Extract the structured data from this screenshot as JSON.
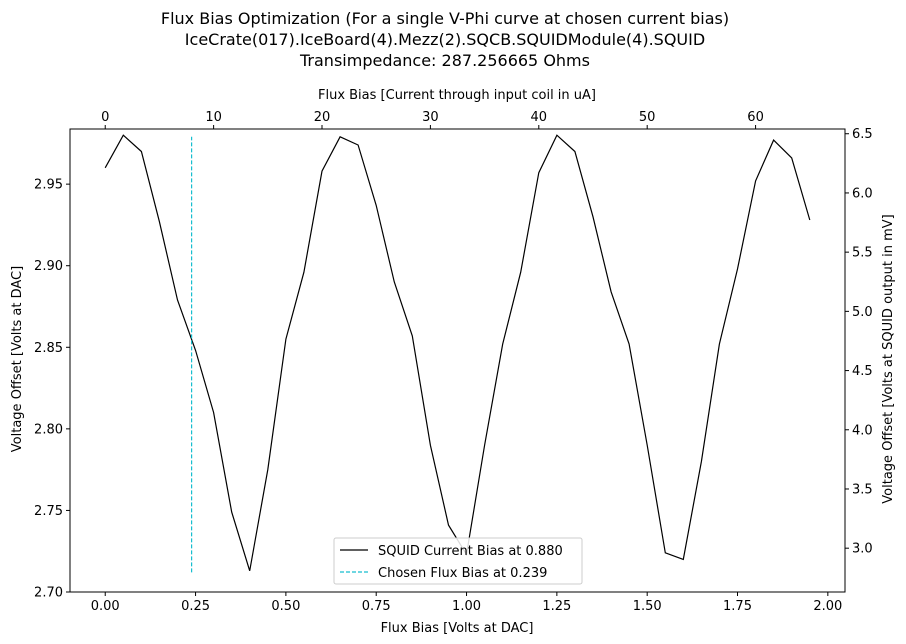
{
  "chart_data": {
    "type": "line",
    "title_lines": [
      "Flux Bias Optimization (For a single V-Phi curve at chosen current bias)",
      "IceCrate(017).IceBoard(4).Mezz(2).SQCB.SQUIDModule(4).SQUID",
      "Transimpedance: 287.256665 Ohms"
    ],
    "xlabel": "Flux Bias [Volts at DAC]",
    "ylabel": "Voltage Offset [Volts at DAC]",
    "top_xlabel": "Flux Bias [Current through input coil in uA]",
    "right_ylabel": "Voltage Offset [Volts at SQUID output in mV]",
    "xlim": [
      -0.0975,
      2.0475
    ],
    "ylim": [
      2.7,
      2.9838
    ],
    "top_xlim": [
      -3.25,
      68.25
    ],
    "right_ylim": [
      2.63,
      6.54
    ],
    "x_ticks": [
      "0.00",
      "0.25",
      "0.50",
      "0.75",
      "1.00",
      "1.25",
      "1.50",
      "1.75",
      "2.00"
    ],
    "y_ticks": [
      "2.70",
      "2.75",
      "2.80",
      "2.85",
      "2.90",
      "2.95"
    ],
    "top_x_ticks": [
      "0",
      "10",
      "20",
      "30",
      "40",
      "50",
      "60"
    ],
    "right_y_ticks": [
      "3.0",
      "3.5",
      "4.0",
      "4.5",
      "5.0",
      "5.5",
      "6.0",
      "6.5"
    ],
    "series": [
      {
        "name": "SQUID Current Bias at 0.880",
        "color": "#000000",
        "style": "solid",
        "x": [
          0.0,
          0.05,
          0.1,
          0.15,
          0.2,
          0.25,
          0.3,
          0.35,
          0.4,
          0.45,
          0.5,
          0.55,
          0.6,
          0.65,
          0.7,
          0.75,
          0.8,
          0.85,
          0.9,
          0.95,
          1.0,
          1.05,
          1.1,
          1.15,
          1.2,
          1.25,
          1.3,
          1.35,
          1.4,
          1.45,
          1.5,
          1.55,
          1.6,
          1.65,
          1.7,
          1.75,
          1.8,
          1.85,
          1.9,
          1.95
        ],
        "y": [
          2.96,
          2.98,
          2.97,
          2.927,
          2.879,
          2.848,
          2.81,
          2.749,
          2.713,
          2.775,
          2.855,
          2.896,
          2.958,
          2.979,
          2.974,
          2.937,
          2.89,
          2.857,
          2.79,
          2.741,
          2.723,
          2.79,
          2.852,
          2.896,
          2.957,
          2.98,
          2.97,
          2.93,
          2.884,
          2.852,
          2.79,
          2.724,
          2.72,
          2.78,
          2.852,
          2.898,
          2.952,
          2.977,
          2.966,
          2.928
        ]
      },
      {
        "name": "Chosen Flux Bias at 0.239",
        "color": "#17becf",
        "style": "dashed",
        "x": [
          0.239,
          0.239
        ],
        "y": [
          2.712,
          2.979
        ]
      }
    ],
    "legend_position": "lower center",
    "grid": false
  }
}
